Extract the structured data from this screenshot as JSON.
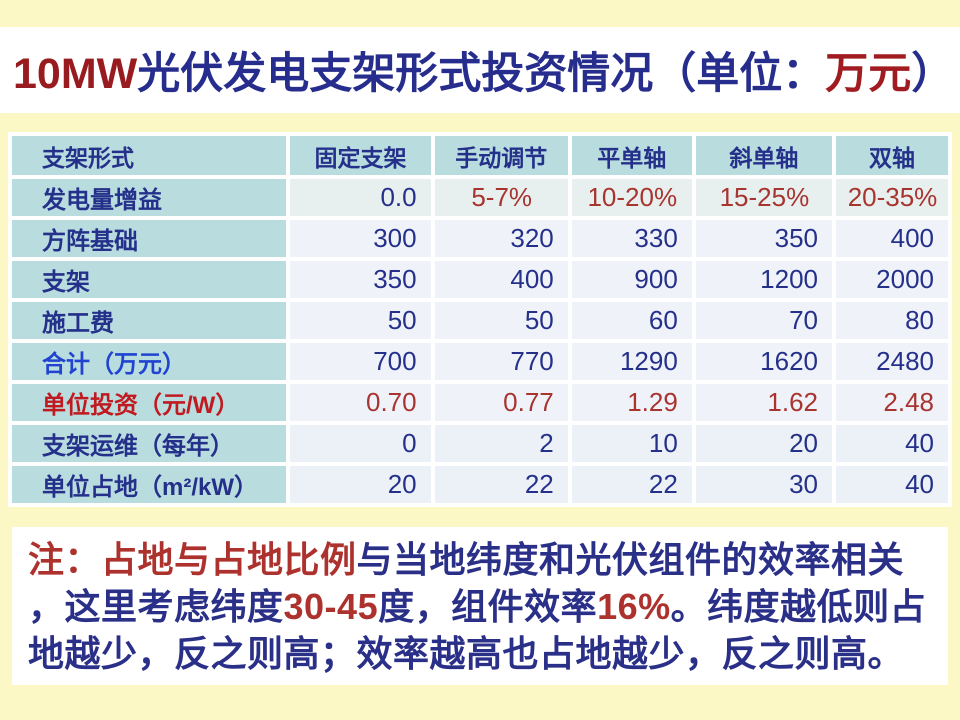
{
  "colors": {
    "page_background": "#FCF8C5",
    "panel_white": "#FFFFFF",
    "header_teal": "#B9DDDF",
    "cell_light": "#EFF3F9",
    "cell_tinted": "#E8F0EF",
    "navy": "#24308A",
    "title_navy": "#262D8C",
    "dark_red": "#981B1F",
    "value_red": "#A8342F",
    "bright_blue": "#2143D1",
    "note_navy": "#2A2F88",
    "note_red": "#AD322E"
  },
  "title": {
    "segments": [
      {
        "text": "10MW",
        "color": "#981B1F"
      },
      {
        "text": "光伏发电支架形式投资情况（单位：",
        "color": "#262D8C"
      },
      {
        "text": "万元",
        "color": "#A01C20"
      },
      {
        "text": "）",
        "color": "#262D8C"
      }
    ],
    "full_text": "10MW光伏发电支架形式投资情况（单位：万元）"
  },
  "table": {
    "header": [
      "支架形式",
      "固定支架",
      "手动调节",
      "平单轴",
      "斜单轴",
      "双轴"
    ],
    "rows": [
      {
        "label": "发电量增益",
        "label_color": "#24308A",
        "values": [
          "0.0",
          "5-7%",
          "10-20%",
          "15-25%",
          "20-35%"
        ],
        "value_colors": [
          "#24308A",
          "#A8342F",
          "#A8342F",
          "#A8342F",
          "#A8342F"
        ],
        "aligns": [
          "right",
          "center",
          "center",
          "center",
          "center"
        ],
        "tint": "tinted"
      },
      {
        "label": "方阵基础",
        "label_color": "#24308A",
        "values": [
          "300",
          "320",
          "330",
          "350",
          "400"
        ],
        "value_colors": [
          "#24308A",
          "#24308A",
          "#24308A",
          "#24308A",
          "#24308A"
        ],
        "aligns": [
          "right",
          "right",
          "right",
          "right",
          "right"
        ],
        "tint": ""
      },
      {
        "label": "支架",
        "label_color": "#24308A",
        "values": [
          "350",
          "400",
          "900",
          "1200",
          "2000"
        ],
        "value_colors": [
          "#24308A",
          "#24308A",
          "#24308A",
          "#24308A",
          "#24308A"
        ],
        "aligns": [
          "right",
          "right",
          "right",
          "right",
          "right"
        ],
        "tint": ""
      },
      {
        "label": "施工费",
        "label_color": "#24308A",
        "values": [
          "50",
          "50",
          "60",
          "70",
          "80"
        ],
        "value_colors": [
          "#24308A",
          "#24308A",
          "#24308A",
          "#24308A",
          "#24308A"
        ],
        "aligns": [
          "right",
          "right",
          "right",
          "right",
          "right"
        ],
        "tint": ""
      },
      {
        "label": "合计（万元）",
        "label_color": "#2143D1",
        "values": [
          "700",
          "770",
          "1290",
          "1620",
          "2480"
        ],
        "value_colors": [
          "#24308A",
          "#24308A",
          "#24308A",
          "#24308A",
          "#24308A"
        ],
        "aligns": [
          "right",
          "right",
          "right",
          "right",
          "right"
        ],
        "tint": ""
      },
      {
        "label": "单位投资（元/W）",
        "label_color": "#C01A20",
        "values": [
          "0.70",
          "0.77",
          "1.29",
          "1.62",
          "2.48"
        ],
        "value_colors": [
          "#A8342F",
          "#A8342F",
          "#A8342F",
          "#A8342F",
          "#A8342F"
        ],
        "aligns": [
          "right",
          "right",
          "right",
          "right",
          "right"
        ],
        "tint": ""
      },
      {
        "label": "支架运维（每年）",
        "label_color": "#24308A",
        "values": [
          "0",
          "2",
          "10",
          "20",
          "40"
        ],
        "value_colors": [
          "#24308A",
          "#24308A",
          "#24308A",
          "#24308A",
          "#24308A"
        ],
        "aligns": [
          "right",
          "right",
          "right",
          "right",
          "right"
        ],
        "tint": "tinted2"
      },
      {
        "label": "单位占地（m²/kW）",
        "label_color": "#24308A",
        "values": [
          "20",
          "22",
          "22",
          "30",
          "40"
        ],
        "value_colors": [
          "#24308A",
          "#24308A",
          "#24308A",
          "#24308A",
          "#24308A"
        ],
        "aligns": [
          "right",
          "right",
          "right",
          "right",
          "right"
        ],
        "tint": "tinted2"
      }
    ]
  },
  "note": {
    "lines": [
      [
        {
          "text": "注：",
          "color": "#AD322E"
        },
        {
          "text": "占地与占地比例",
          "color": "#AD322E"
        },
        {
          "text": "与当地纬度和光伏组件的效率相关",
          "color": "#2A2F88"
        }
      ],
      [
        {
          "text": "，这里考虑纬度",
          "color": "#2A2F88"
        },
        {
          "text": "30-45",
          "color": "#AD322E"
        },
        {
          "text": "度，组件效率",
          "color": "#2A2F88"
        },
        {
          "text": "16%",
          "color": "#AD322E"
        },
        {
          "text": "。纬度越低则占",
          "color": "#2A2F88"
        }
      ],
      [
        {
          "text": "地越少，反之则高；效率越高也占地越少，反之则高。",
          "color": "#2A2F88"
        }
      ]
    ],
    "full_text": "注：占地与占地比例与当地纬度和光伏组件的效率相关，这里考虑纬度30-45度，组件效率16%。纬度越低则占地越少，反之则高；效率越高也占地越少，反之则高。"
  }
}
